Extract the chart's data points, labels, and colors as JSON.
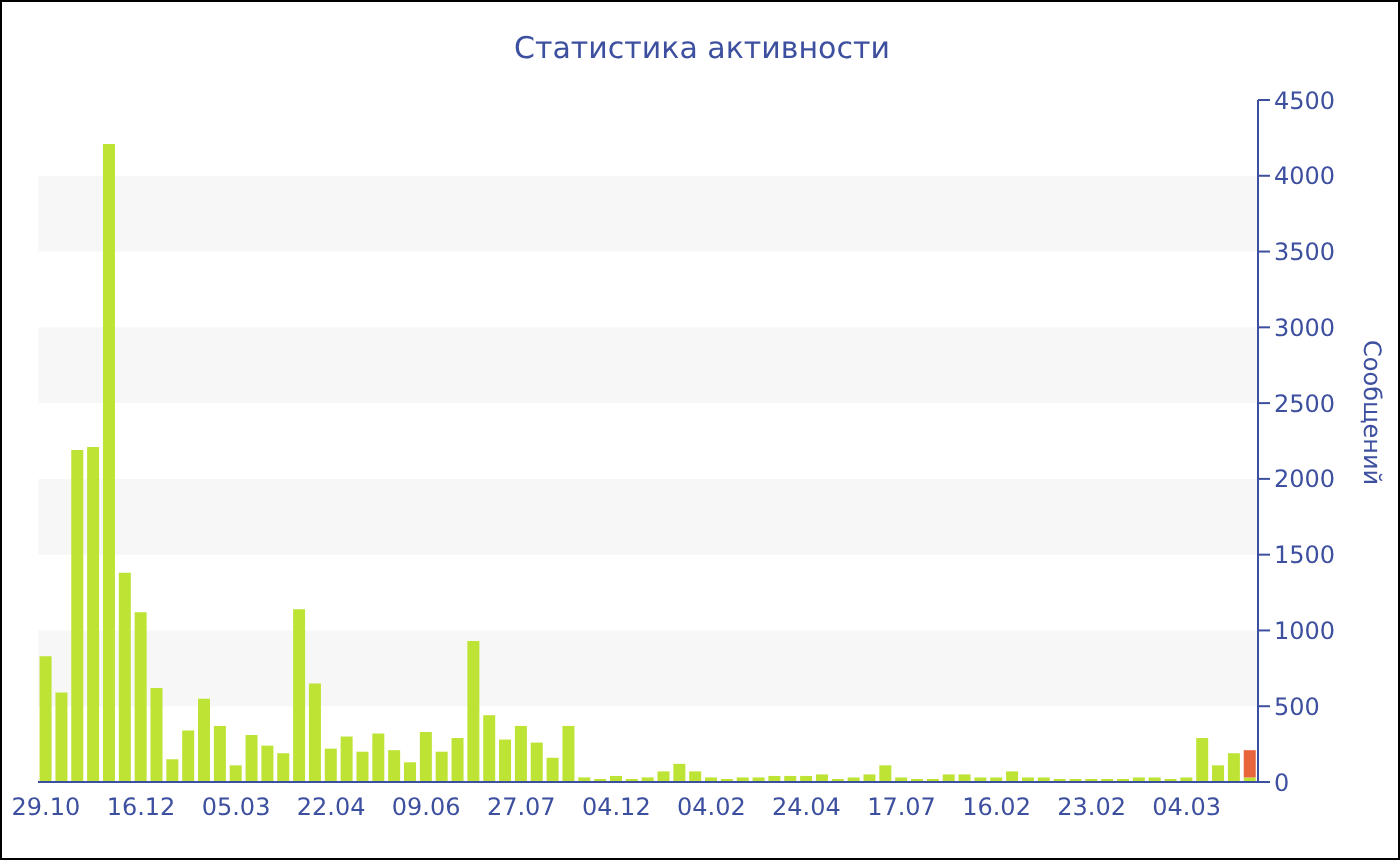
{
  "chart_data": {
    "type": "bar",
    "title": "Статистика активности",
    "ylabel": "Сообщений",
    "categories": [
      "29.10",
      null,
      null,
      null,
      null,
      null,
      "16.12",
      null,
      null,
      null,
      null,
      null,
      "05.03",
      null,
      null,
      null,
      null,
      null,
      "22.04",
      null,
      null,
      null,
      null,
      null,
      "09.06",
      null,
      null,
      null,
      null,
      null,
      "27.07",
      null,
      null,
      null,
      null,
      null,
      "04.12",
      null,
      null,
      null,
      null,
      null,
      "04.02",
      null,
      null,
      null,
      null,
      null,
      "24.04",
      null,
      null,
      null,
      null,
      null,
      "17.07",
      null,
      null,
      null,
      null,
      null,
      "16.02",
      null,
      null,
      null,
      null,
      null,
      "23.02",
      null,
      null,
      null,
      null,
      null,
      "04.03",
      null,
      null,
      null,
      null
    ],
    "series": [
      {
        "color": "#bde334",
        "values": [
          830,
          590,
          2190,
          2210,
          4210,
          1380,
          1120,
          620,
          150,
          340,
          550,
          370,
          110,
          310,
          240,
          190,
          1140,
          650,
          220,
          300,
          200,
          320,
          210,
          130,
          330,
          200,
          290,
          930,
          440,
          280,
          370,
          260,
          160,
          370,
          30,
          20,
          40,
          20,
          30,
          70,
          120,
          70,
          30,
          20,
          30,
          30,
          40,
          40,
          40,
          50,
          20,
          30,
          50,
          110,
          30,
          20,
          20,
          50,
          50,
          30,
          30,
          70,
          30,
          30,
          20,
          20,
          20,
          20,
          20,
          30,
          30,
          20,
          30,
          290,
          110,
          190,
          30
        ]
      },
      {
        "color": "#e8643c",
        "values": [
          null,
          null,
          null,
          null,
          null,
          null,
          null,
          null,
          null,
          null,
          null,
          null,
          null,
          null,
          null,
          null,
          null,
          null,
          null,
          null,
          null,
          null,
          null,
          null,
          null,
          null,
          null,
          null,
          null,
          null,
          null,
          null,
          null,
          null,
          null,
          null,
          null,
          null,
          null,
          null,
          null,
          null,
          null,
          null,
          null,
          null,
          null,
          null,
          null,
          null,
          null,
          null,
          null,
          null,
          null,
          null,
          null,
          null,
          null,
          null,
          null,
          null,
          null,
          null,
          null,
          null,
          null,
          null,
          null,
          null,
          null,
          null,
          null,
          null,
          null,
          null,
          180
        ]
      }
    ],
    "stacked": true,
    "ylim": [
      0,
      4500
    ],
    "yticks": [
      0,
      500,
      1000,
      1500,
      2000,
      2500,
      3000,
      3500,
      4000,
      4500
    ],
    "bands": [
      {
        "axis": "y",
        "from": 500,
        "to": 1000,
        "color": "#f7f7f7"
      },
      {
        "axis": "y",
        "from": 1500,
        "to": 2000,
        "color": "#f7f7f7"
      },
      {
        "axis": "y",
        "from": 2500,
        "to": 3000,
        "color": "#f7f7f7"
      },
      {
        "axis": "y",
        "from": 3500,
        "to": 4000,
        "color": "#f7f7f7"
      }
    ],
    "grid": false,
    "legend": false
  }
}
